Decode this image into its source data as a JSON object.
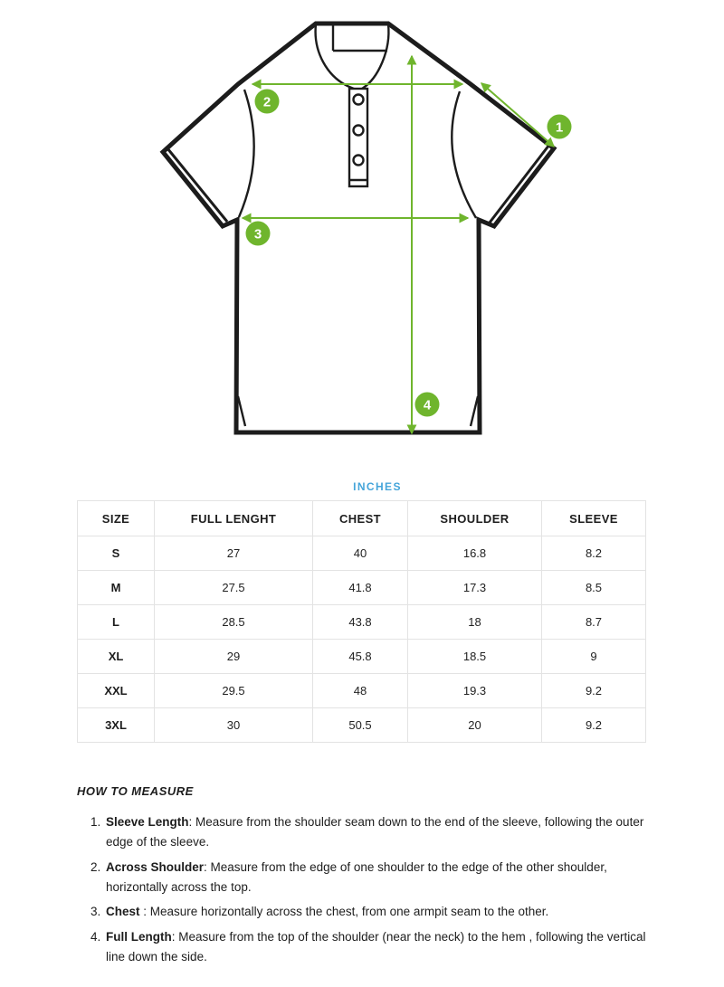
{
  "diagram": {
    "outline_color": "#1c1c1c",
    "accent_green": "#6fb52d",
    "callouts": [
      {
        "n": "1",
        "meaning": "sleeve"
      },
      {
        "n": "2",
        "meaning": "across-shoulder"
      },
      {
        "n": "3",
        "meaning": "chest"
      },
      {
        "n": "4",
        "meaning": "full-length"
      }
    ]
  },
  "table": {
    "unit_label": "INCHES",
    "unit_color": "#45a5da",
    "columns": [
      "SIZE",
      "FULL LENGHT",
      "CHEST",
      "SHOULDER",
      "SLEEVE"
    ],
    "rows": [
      [
        "S",
        "27",
        "40",
        "16.8",
        "8.2"
      ],
      [
        "M",
        "27.5",
        "41.8",
        "17.3",
        "8.5"
      ],
      [
        "L",
        "28.5",
        "43.8",
        "18",
        "8.7"
      ],
      [
        "XL",
        "29",
        "45.8",
        "18.5",
        "9"
      ],
      [
        "XXL",
        "29.5",
        "48",
        "19.3",
        "9.2"
      ],
      [
        "3XL",
        "30",
        "50.5",
        "20",
        "9.2"
      ]
    ]
  },
  "how_to_measure": {
    "title": "HOW TO MEASURE",
    "items": [
      {
        "term": "Sleeve Length",
        "text": ": Measure from the shoulder seam down to the end of the sleeve, following the outer edge of the sleeve."
      },
      {
        "term": "Across Shoulder",
        "text": ": Measure from the edge of one shoulder to the edge of the other shoulder, horizontally across the top."
      },
      {
        "term": "Chest",
        "text": " : Measure horizontally across the chest, from one armpit seam to the other."
      },
      {
        "term": "Full Length",
        "text": ": Measure from the top of the shoulder (near the neck) to the hem , following the vertical line down the side."
      }
    ]
  }
}
